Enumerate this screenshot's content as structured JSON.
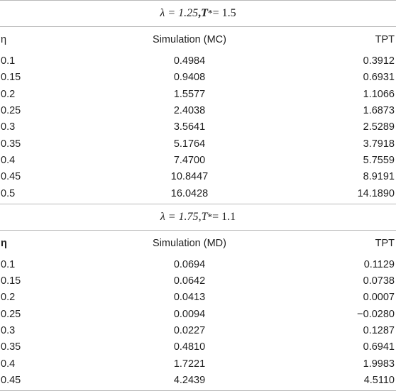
{
  "sections": [
    {
      "heading": {
        "lambda_text": "λ = 1.25",
        "sep": ", ",
        "t_symbol": "T",
        "t_sup": "*",
        "t_value": " = 1.5"
      },
      "columns": [
        "η",
        "Simulation (MC)",
        "TPT"
      ],
      "rows": [
        [
          "0.1",
          "0.4984",
          "0.3912"
        ],
        [
          "0.15",
          "0.9408",
          "0.6931"
        ],
        [
          "0.2",
          "1.5577",
          "1.1066"
        ],
        [
          "0.25",
          "2.4038",
          "1.6873"
        ],
        [
          "0.3",
          "3.5641",
          "2.5289"
        ],
        [
          "0.35",
          "5.1764",
          "3.7918"
        ],
        [
          "0.4",
          "7.4700",
          "5.7559"
        ],
        [
          "0.45",
          "10.8447",
          "8.9191"
        ],
        [
          "0.5",
          "16.0428",
          "14.1890"
        ]
      ]
    },
    {
      "heading": {
        "lambda_text": "λ = 1.75",
        "sep": ", ",
        "t_symbol": "T",
        "t_sup": "*",
        "t_value": " = 1.1"
      },
      "columns": [
        "η",
        "Simulation (MD)",
        "TPT"
      ],
      "rows": [
        [
          "0.1",
          "0.0694",
          "0.1129"
        ],
        [
          "0.15",
          "0.0642",
          "0.0738"
        ],
        [
          "0.2",
          "0.0413",
          "0.0007"
        ],
        [
          "0.25",
          "0.0094",
          "−0.0280"
        ],
        [
          "0.3",
          "0.0227",
          "0.1287"
        ],
        [
          "0.35",
          "0.4810",
          "0.6941"
        ],
        [
          "0.4",
          "1.7221",
          "1.9983"
        ],
        [
          "0.45",
          "4.2439",
          "4.5110"
        ]
      ]
    }
  ]
}
